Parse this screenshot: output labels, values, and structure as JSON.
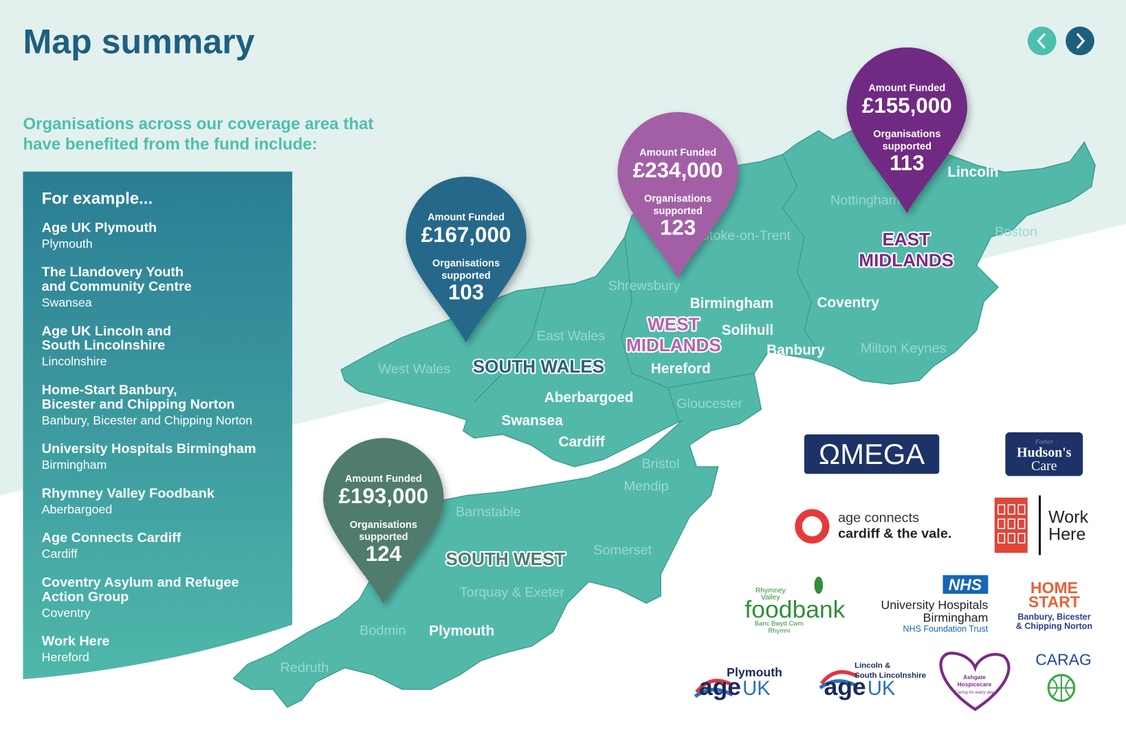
{
  "header": {
    "title": "Map summary"
  },
  "intro": [
    "Organisations across our coverage area that",
    "have benefited from the fund include:"
  ],
  "examples": {
    "heading": "For example...",
    "items": [
      {
        "name": [
          "Age UK Plymouth"
        ],
        "place": "Plymouth"
      },
      {
        "name": [
          "The Llandovery Youth",
          "and Community Centre"
        ],
        "place": "Swansea"
      },
      {
        "name": [
          "Age UK Lincoln and",
          "South Lincolnshire"
        ],
        "place": "Lincolnshire"
      },
      {
        "name": [
          "Home-Start Banbury,",
          "Bicester and Chipping Norton"
        ],
        "place": "Banbury, Bicester and Chipping Norton"
      },
      {
        "name": [
          "University Hospitals Birmingham"
        ],
        "place": "Birmingham"
      },
      {
        "name": [
          "Rhymney Valley Foodbank"
        ],
        "place": "Aberbargoed"
      },
      {
        "name": [
          "Age Connects Cardiff"
        ],
        "place": "Cardiff"
      },
      {
        "name": [
          "Coventry Asylum and Refugee",
          "Action Group"
        ],
        "place": "Coventry"
      },
      {
        "name": [
          "Work Here"
        ],
        "place": "Hereford"
      }
    ]
  },
  "pins": [
    {
      "label": "Amount Funded",
      "amount": "£167,000",
      "orgs_label": [
        "Organisations",
        "supported"
      ],
      "orgs": 103,
      "color": "#27688a"
    },
    {
      "label": "Amount Funded",
      "amount": "£234,000",
      "orgs_label": [
        "Organisations",
        "supported"
      ],
      "orgs": 123,
      "color": "#a35fa6"
    },
    {
      "label": "Amount Funded",
      "amount": "£155,000",
      "orgs_label": [
        "Organisations",
        "supported"
      ],
      "orgs": 113,
      "color": "#6f2a83"
    },
    {
      "label": "Amount Funded",
      "amount": "£193,000",
      "orgs_label": [
        "Organisations",
        "supported"
      ],
      "orgs": 124,
      "color": "#4f7c6c"
    }
  ],
  "regions": [
    {
      "name": [
        "SOUTH WALES"
      ],
      "color": "#2b5f78"
    },
    {
      "name": [
        "WEST",
        "MIDLANDS"
      ],
      "color": "#b463ad"
    },
    {
      "name": [
        "EAST",
        "MIDLANDS"
      ],
      "color": "#7a2a86"
    },
    {
      "name": [
        "SOUTH WEST"
      ],
      "color": "#4f7c6c"
    }
  ],
  "places": [
    "Lincoln",
    "Birmingham",
    "Solihull",
    "Coventry",
    "Banbury",
    "Hereford",
    "Aberbargoed",
    "Swansea",
    "Cardiff",
    "Plymouth"
  ],
  "minor_places": [
    "Nottingham",
    "Stoke-on-Trent",
    "Boston",
    "Shrewsbury",
    "East Wales",
    "West Wales",
    "Milton Keynes",
    "Gloucester",
    "Bristol",
    "Mendip",
    "Barnstable",
    "Somerset",
    "Torquay & Exeter",
    "Bodmin",
    "Redruth"
  ],
  "logos": {
    "omega": "ΩMEGA",
    "hudsons": [
      "Father",
      "Hudson's",
      "Care"
    ],
    "age_connects": [
      "age connects",
      "cardiff & the vale."
    ],
    "work_here": [
      "Work",
      "Here"
    ],
    "foodbank": {
      "top": [
        "Rhymney",
        "Valley"
      ],
      "name": "foodbank",
      "sub": [
        "Banc Bwyd Cwm",
        "Rhymni"
      ]
    },
    "nhs": {
      "badge": "NHS",
      "lines": [
        "University Hospitals",
        "Birmingham"
      ],
      "trust": "NHS Foundation Trust"
    },
    "home_start": {
      "name": [
        "HOME",
        "START"
      ],
      "sub": [
        "Banbury, Bicester",
        "& Chipping Norton"
      ]
    },
    "age_uk_plymouth": {
      "tag": [
        "Plymouth"
      ],
      "brand": [
        "age",
        "UK"
      ]
    },
    "age_uk_lincoln": {
      "tag": [
        "Lincoln &",
        "South Lincolnshire"
      ],
      "brand": [
        "age",
        "UK"
      ]
    },
    "ashgate": [
      "Ashgate",
      "Hospicecare",
      "Caring for every day"
    ],
    "carag": "CARAG"
  }
}
